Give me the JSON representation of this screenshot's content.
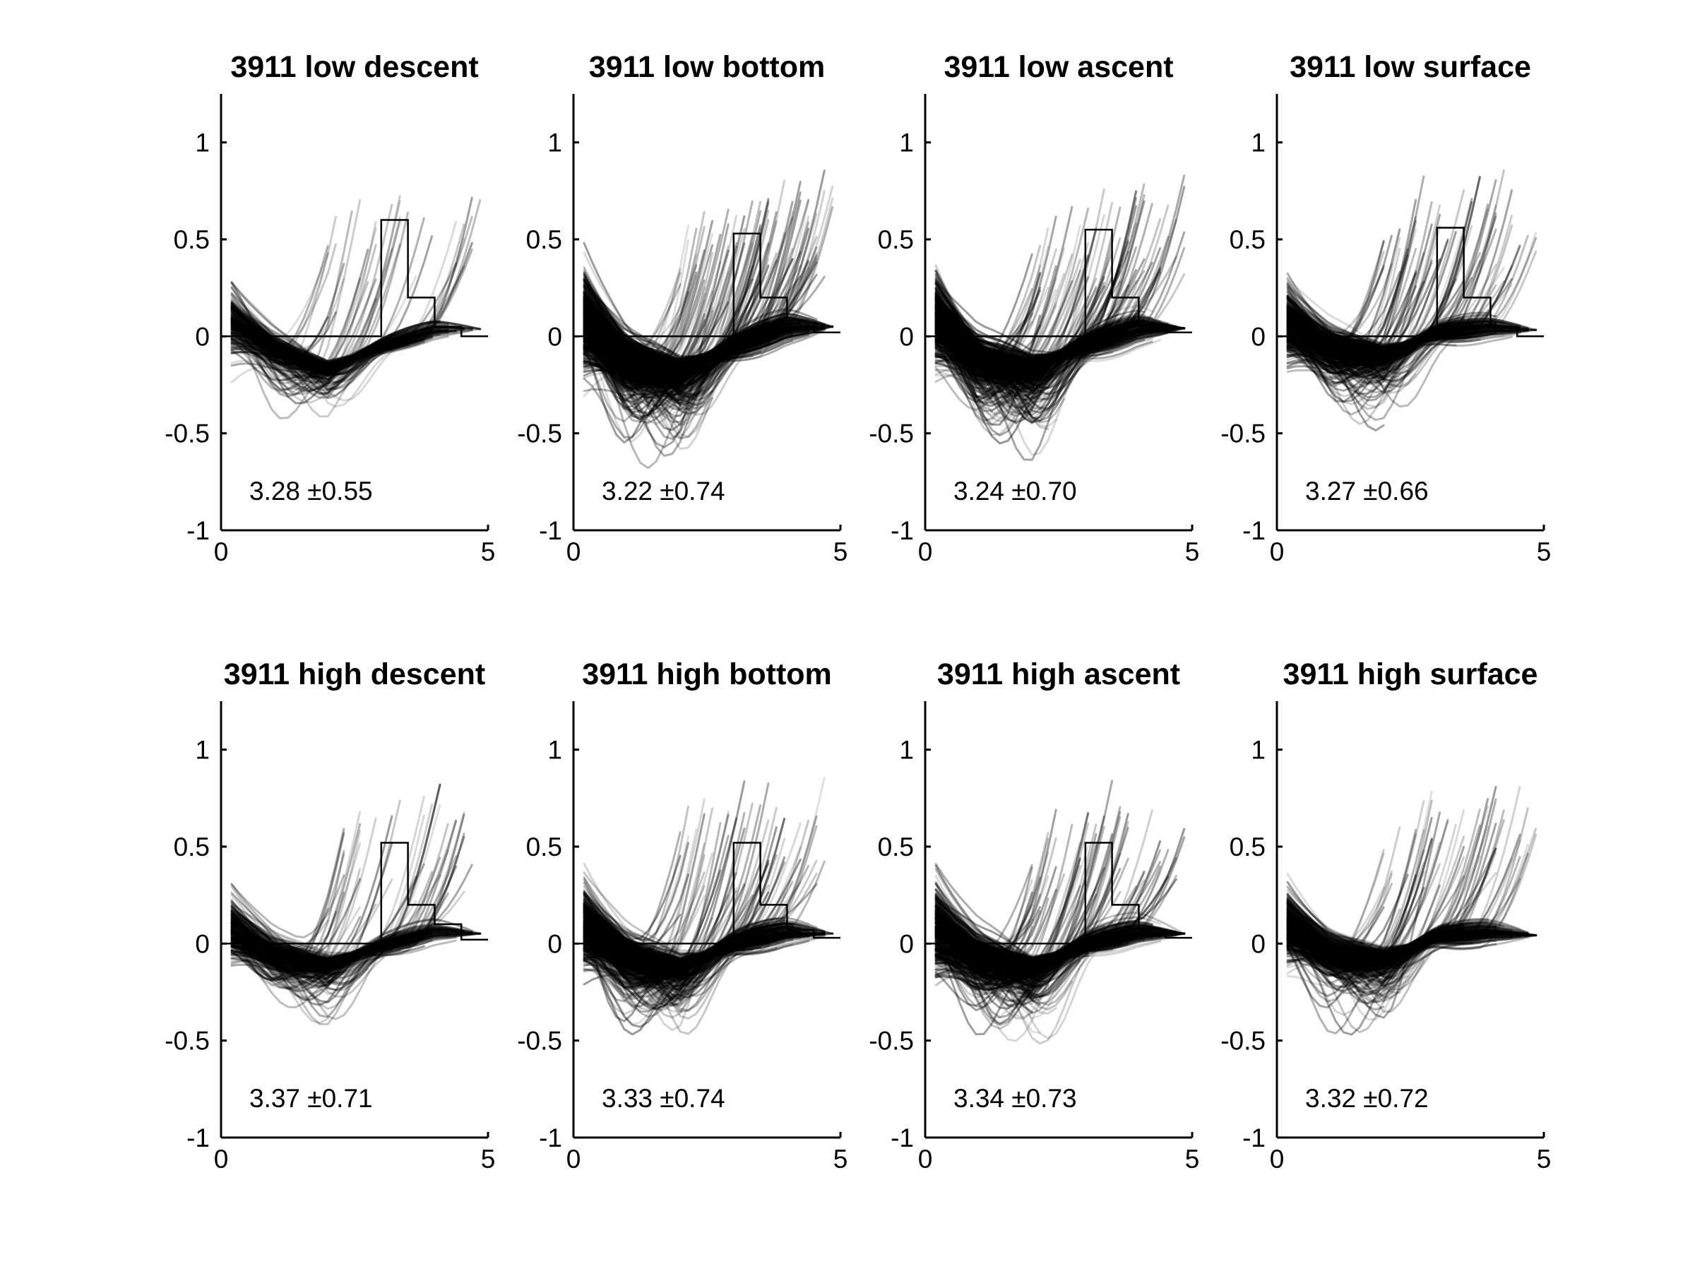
{
  "chart_data": [
    {
      "type": "line",
      "title": "3911 low descent",
      "annotation": "3.28 ±0.55",
      "xlim": [
        0,
        5
      ],
      "ylim": [
        -1,
        1.25
      ],
      "xticks": [
        0,
        5
      ],
      "yticks": [
        -1,
        -0.5,
        0,
        0.5,
        1
      ],
      "ytick_labels": [
        "-1",
        "-0.5",
        "0",
        "0.5",
        "1"
      ],
      "xtick_labels": [
        "0",
        "5"
      ],
      "grid": false,
      "traces": {
        "count": 220,
        "mean_curve": {
          "x": [
            0.2,
            1,
            2,
            3,
            4,
            5
          ],
          "y": [
            0.08,
            -0.05,
            -0.15,
            -0.05,
            0.03,
            0.04
          ]
        },
        "spread": 0.22
      },
      "histogram": {
        "bin_edges": [
          0,
          0.5,
          1,
          1.5,
          2,
          2.5,
          3,
          3.5,
          4,
          4.5,
          5
        ],
        "values": [
          0,
          0,
          0,
          0,
          0,
          0,
          0.6,
          0.2,
          0.05,
          0
        ]
      }
    },
    {
      "type": "line",
      "title": "3911 low bottom",
      "annotation": "3.22 ±0.74",
      "xlim": [
        0,
        5
      ],
      "ylim": [
        -1,
        1.25
      ],
      "xticks": [
        0,
        5
      ],
      "yticks": [
        -1,
        -0.5,
        0,
        0.5,
        1
      ],
      "ytick_labels": [
        "-1",
        "-0.5",
        "0",
        "0.5",
        "1"
      ],
      "xtick_labels": [
        "0",
        "5"
      ],
      "grid": false,
      "traces": {
        "count": 600,
        "mean_curve": {
          "x": [
            0.2,
            1,
            2,
            3,
            4,
            5
          ],
          "y": [
            0.08,
            -0.1,
            -0.15,
            -0.05,
            0.05,
            0.05
          ]
        },
        "spread": 0.3
      },
      "histogram": {
        "bin_edges": [
          0,
          0.5,
          1,
          1.5,
          2,
          2.5,
          3,
          3.5,
          4,
          4.5,
          5
        ],
        "values": [
          0,
          0,
          0,
          0,
          0,
          0,
          0.53,
          0.2,
          0.05,
          0.02
        ]
      }
    },
    {
      "type": "line",
      "title": "3911 low ascent",
      "annotation": "3.24 ±0.70",
      "xlim": [
        0,
        5
      ],
      "ylim": [
        -1,
        1.25
      ],
      "xticks": [
        0,
        5
      ],
      "yticks": [
        -1,
        -0.5,
        0,
        0.5,
        1
      ],
      "ytick_labels": [
        "-1",
        "-0.5",
        "0",
        "0.5",
        "1"
      ],
      "xtick_labels": [
        "0",
        "5"
      ],
      "grid": false,
      "traces": {
        "count": 500,
        "mean_curve": {
          "x": [
            0.2,
            1,
            2,
            3,
            4,
            5
          ],
          "y": [
            0.08,
            -0.1,
            -0.14,
            -0.04,
            0.05,
            0.04
          ]
        },
        "spread": 0.28
      },
      "histogram": {
        "bin_edges": [
          0,
          0.5,
          1,
          1.5,
          2,
          2.5,
          3,
          3.5,
          4,
          4.5,
          5
        ],
        "values": [
          0,
          0,
          0,
          0,
          0,
          0,
          0.55,
          0.2,
          0.05,
          0.02
        ]
      }
    },
    {
      "type": "line",
      "title": "3911 low surface",
      "annotation": "3.27 ±0.66",
      "xlim": [
        0,
        5
      ],
      "ylim": [
        -1,
        1.25
      ],
      "xticks": [
        0,
        5
      ],
      "yticks": [
        -1,
        -0.5,
        0,
        0.5,
        1
      ],
      "ytick_labels": [
        "-1",
        "-0.5",
        "0",
        "0.5",
        "1"
      ],
      "xtick_labels": [
        "0",
        "5"
      ],
      "grid": false,
      "traces": {
        "count": 350,
        "mean_curve": {
          "x": [
            0.2,
            1,
            2,
            3,
            4,
            5
          ],
          "y": [
            0.07,
            -0.04,
            -0.08,
            0.02,
            0.05,
            0.03
          ]
        },
        "spread": 0.24
      },
      "histogram": {
        "bin_edges": [
          0,
          0.5,
          1,
          1.5,
          2,
          2.5,
          3,
          3.5,
          4,
          4.5,
          5
        ],
        "values": [
          0,
          0,
          0,
          0,
          0,
          0,
          0.56,
          0.2,
          0.05,
          0
        ]
      }
    },
    {
      "type": "line",
      "title": "3911 high descent",
      "annotation": "3.37 ±0.71",
      "xlim": [
        0,
        5
      ],
      "ylim": [
        -1,
        1.25
      ],
      "xticks": [
        0,
        5
      ],
      "yticks": [
        -1,
        -0.5,
        0,
        0.5,
        1
      ],
      "ytick_labels": [
        "-1",
        "-0.5",
        "0",
        "0.5",
        "1"
      ],
      "xtick_labels": [
        "0",
        "5"
      ],
      "grid": false,
      "traces": {
        "count": 260,
        "mean_curve": {
          "x": [
            0.2,
            1,
            2,
            3,
            4,
            5
          ],
          "y": [
            0.08,
            -0.04,
            -0.09,
            -0.01,
            0.06,
            0.05
          ]
        },
        "spread": 0.22
      },
      "histogram": {
        "bin_edges": [
          0,
          0.5,
          1,
          1.5,
          2,
          2.5,
          3,
          3.5,
          4,
          4.5,
          5
        ],
        "values": [
          0,
          0,
          0,
          0,
          0,
          0,
          0.52,
          0.2,
          0.1,
          0.02
        ]
      }
    },
    {
      "type": "line",
      "title": "3911 high bottom",
      "annotation": "3.33 ±0.74",
      "xlim": [
        0,
        5
      ],
      "ylim": [
        -1,
        1.25
      ],
      "xticks": [
        0,
        5
      ],
      "yticks": [
        -1,
        -0.5,
        0,
        0.5,
        1
      ],
      "ytick_labels": [
        "-1",
        "-0.5",
        "0",
        "0.5",
        "1"
      ],
      "xtick_labels": [
        "0",
        "5"
      ],
      "grid": false,
      "traces": {
        "count": 420,
        "mean_curve": {
          "x": [
            0.2,
            1,
            2,
            3,
            4,
            5
          ],
          "y": [
            0.08,
            -0.05,
            -0.1,
            0,
            0.06,
            0.05
          ]
        },
        "spread": 0.28
      },
      "histogram": {
        "bin_edges": [
          0,
          0.5,
          1,
          1.5,
          2,
          2.5,
          3,
          3.5,
          4,
          4.5,
          5
        ],
        "values": [
          0,
          0,
          0,
          0,
          0,
          0,
          0.52,
          0.2,
          0.07,
          0.03
        ]
      }
    },
    {
      "type": "line",
      "title": "3911 high ascent",
      "annotation": "3.34 ±0.73",
      "xlim": [
        0,
        5
      ],
      "ylim": [
        -1,
        1.25
      ],
      "xticks": [
        0,
        5
      ],
      "yticks": [
        -1,
        -0.5,
        0,
        0.5,
        1
      ],
      "ytick_labels": [
        "-1",
        "-0.5",
        "0",
        "0.5",
        "1"
      ],
      "xtick_labels": [
        "0",
        "5"
      ],
      "grid": false,
      "traces": {
        "count": 400,
        "mean_curve": {
          "x": [
            0.2,
            1,
            2,
            3,
            4,
            5
          ],
          "y": [
            0.08,
            -0.05,
            -0.1,
            0,
            0.06,
            0.05
          ]
        },
        "spread": 0.28
      },
      "histogram": {
        "bin_edges": [
          0,
          0.5,
          1,
          1.5,
          2,
          2.5,
          3,
          3.5,
          4,
          4.5,
          5
        ],
        "values": [
          0,
          0,
          0,
          0,
          0,
          0,
          0.52,
          0.2,
          0.07,
          0.03
        ]
      }
    },
    {
      "type": "line",
      "title": "3911 high surface",
      "annotation": "3.32 ±0.72",
      "xlim": [
        0,
        5
      ],
      "ylim": [
        -1,
        1.25
      ],
      "xticks": [
        0,
        5
      ],
      "yticks": [
        -1,
        -0.5,
        0,
        0.5,
        1
      ],
      "ytick_labels": [
        "-1",
        "-0.5",
        "0",
        "0.5",
        "1"
      ],
      "xtick_labels": [
        "0",
        "5"
      ],
      "grid": false,
      "traces": {
        "count": 380,
        "mean_curve": {
          "x": [
            0.2,
            1,
            2,
            3,
            4,
            5
          ],
          "y": [
            0.09,
            -0.03,
            -0.06,
            0.04,
            0.06,
            0.04
          ]
        },
        "spread": 0.24
      },
      "histogram": null
    }
  ]
}
